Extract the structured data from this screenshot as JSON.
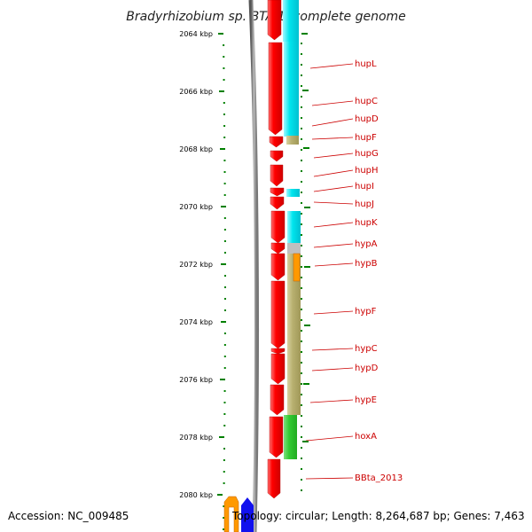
{
  "title": "Bradyrhizobium sp. BTAi1, complete genome",
  "footer": {
    "accession": "Accession: NC_009485",
    "topology": "Topology: circular; Length: 8,264,687 bp; Genes: 7,463"
  },
  "ticks": [
    "2064 kbp",
    "2066 kbp",
    "2068 kbp",
    "2070 kbp",
    "2072 kbp",
    "2074 kbp",
    "2076 kbp",
    "2078 kbp",
    "2080 kbp"
  ],
  "genes": [
    {
      "name": "hupL",
      "color": "#ff0000"
    },
    {
      "name": "hupC",
      "color": "#ff0000"
    },
    {
      "name": "hupD",
      "color": "#ff0000"
    },
    {
      "name": "hupF",
      "color": "#ff0000"
    },
    {
      "name": "hupG",
      "color": "#ff0000"
    },
    {
      "name": "hupH",
      "color": "#ff0000"
    },
    {
      "name": "hupI",
      "color": "#ff0000"
    },
    {
      "name": "hupJ",
      "color": "#ff0000"
    },
    {
      "name": "hupK",
      "color": "#ff0000"
    },
    {
      "name": "hypA",
      "color": "#ff0000"
    },
    {
      "name": "hypB",
      "color": "#ff0000"
    },
    {
      "name": "hypF",
      "color": "#ff0000"
    },
    {
      "name": "hypC",
      "color": "#ff0000"
    },
    {
      "name": "hypD",
      "color": "#ff0000"
    },
    {
      "name": "hypE",
      "color": "#ff0000"
    },
    {
      "name": "hoxA",
      "color": "#ff0000"
    },
    {
      "name": "BBta_2013",
      "color": "#ff0000"
    }
  ],
  "colors": {
    "gene_forward": "#ff0000",
    "cog_cyan": "#00e5ee",
    "cog_olive": "#b8b070",
    "cog_gray": "#bfbfbf",
    "cog_orange": "#ff9900",
    "cog_green": "#33cc33",
    "tick_green": "#008000",
    "label_red": "#cc0000",
    "backbone": "#808080"
  }
}
